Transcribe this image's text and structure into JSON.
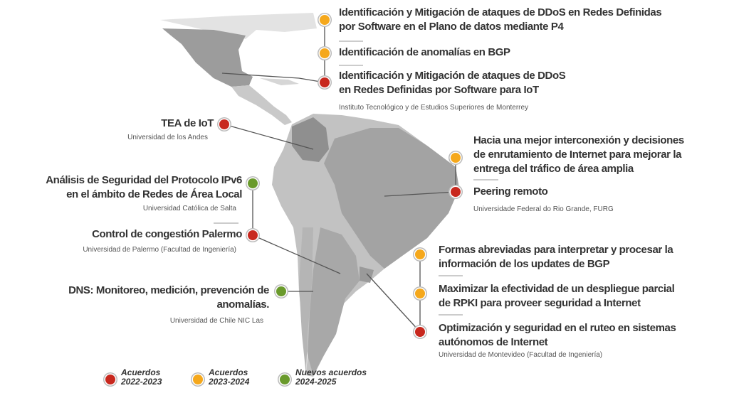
{
  "groups": [
    {
      "institution": "Instituto Tecnológico y de Estudios Superiores de Monterrey",
      "projects": [
        {
          "title_lines": [
            "Identificación y Mitigación de ataques de DDoS en Redes Definidas",
            "por Software en el Plano de datos mediante P4"
          ],
          "color": "#f5a81c"
        },
        {
          "title_lines": [
            "Identificación de anomalías en BGP"
          ],
          "color": "#f5a81c"
        },
        {
          "title_lines": [
            "Identificación y Mitigación de ataques de DDoS",
            "en Redes Definidas por Software para IoT"
          ],
          "color": "#c8281e"
        }
      ]
    },
    {
      "institution": "Universidad de los Andes",
      "projects": [
        {
          "title_lines": [
            "TEA de IoT"
          ],
          "color": "#c8281e"
        }
      ]
    },
    {
      "institution": "Universidad Católica de Salta",
      "projects": [
        {
          "title_lines": [
            "Análisis de Seguridad del Protocolo IPv6",
            "en el ámbito de Redes de Área Local"
          ],
          "color": "#6a9a2c"
        }
      ]
    },
    {
      "institution": "Universidad de Palermo (Facultad de Ingeniería)",
      "projects": [
        {
          "title_lines": [
            "Control de congestión Palermo"
          ],
          "color": "#c8281e"
        }
      ]
    },
    {
      "institution": "Universidad de Chile NIC Las",
      "projects": [
        {
          "title_lines": [
            "DNS: Monitoreo, medición, prevención de",
            "anomalías."
          ],
          "color": "#6a9a2c"
        }
      ]
    },
    {
      "institution": "Universidade Federal do Rio Grande, FURG",
      "projects": [
        {
          "title_lines": [
            "Hacia una mejor interconexión y decisiones",
            "de enrutamiento de Internet para mejorar la",
            "entrega del tráfico de área amplia"
          ],
          "color": "#f5a81c"
        },
        {
          "title_lines": [
            "Peering remoto"
          ],
          "color": "#c8281e"
        }
      ]
    },
    {
      "institution": "Universidad de Montevideo (Facultad de Ingeniería)",
      "projects": [
        {
          "title_lines": [
            "Formas abreviadas para interpretar y procesar la",
            "información de los updates de BGP"
          ],
          "color": "#f5a81c"
        },
        {
          "title_lines": [
            "Maximizar la efectividad de un despliegue parcial",
            "de RPKI para proveer seguridad a Internet"
          ],
          "color": "#f5a81c"
        },
        {
          "title_lines": [
            "Optimización y seguridad en el ruteo en sistemas",
            "autónomos de Internet"
          ],
          "color": "#c8281e"
        }
      ]
    }
  ],
  "legend": [
    {
      "label": "Acuerdos",
      "years": "2022-2023",
      "color": "#c8281e"
    },
    {
      "label": "Acuerdos",
      "years": "2023-2024",
      "color": "#f5a81c"
    },
    {
      "label": "Nuevos acuerdos",
      "years": "2024-2025",
      "color": "#6a9a2c"
    }
  ]
}
